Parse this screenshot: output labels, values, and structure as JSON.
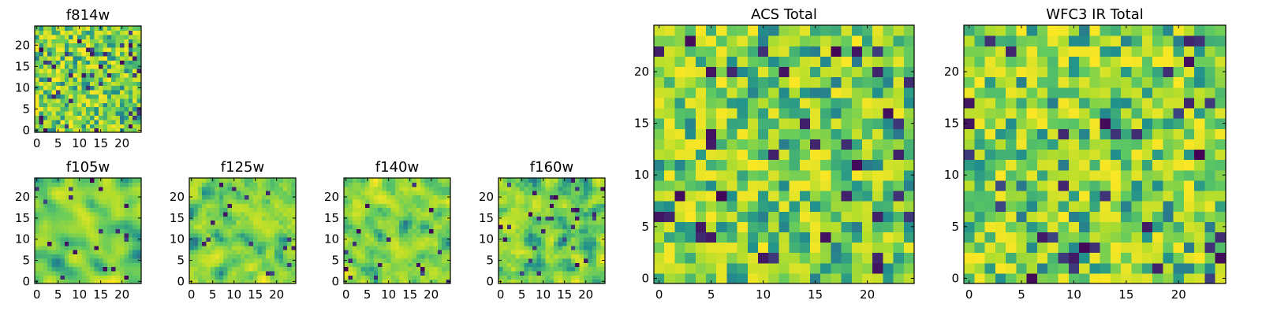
{
  "chart_data": [
    {
      "id": "f814w",
      "type": "heatmap",
      "title": "f814w",
      "grid_size": 25,
      "xlim": [
        -0.5,
        24.5
      ],
      "ylim": [
        -0.5,
        24.5
      ],
      "xticks": [
        0,
        5,
        10,
        15,
        20
      ],
      "yticks": [
        0,
        5,
        10,
        15,
        20
      ],
      "colormap": "viridis",
      "seed": 814,
      "smoothing": 0,
      "low_outlier_rate": 0.05
    },
    {
      "id": "acs-total",
      "type": "heatmap",
      "title": "ACS Total",
      "grid_size": 25,
      "xlim": [
        -0.5,
        24.5
      ],
      "ylim": [
        -0.5,
        24.5
      ],
      "xticks": [
        0,
        5,
        10,
        15,
        20
      ],
      "yticks": [
        0,
        5,
        10,
        15,
        20
      ],
      "colormap": "viridis",
      "seed": 1201,
      "smoothing": 0,
      "low_outlier_rate": 0.04
    },
    {
      "id": "wfc3-ir-total",
      "type": "heatmap",
      "title": "WFC3 IR Total",
      "grid_size": 25,
      "xlim": [
        -0.5,
        24.5
      ],
      "ylim": [
        -0.5,
        24.5
      ],
      "xticks": [
        0,
        5,
        10,
        15,
        20
      ],
      "yticks": [
        0,
        5,
        10,
        15,
        20
      ],
      "colormap": "viridis",
      "seed": 1402,
      "smoothing": 0,
      "low_outlier_rate": 0.05
    },
    {
      "id": "f105w",
      "type": "heatmap",
      "title": "f105w",
      "grid_size": 25,
      "xlim": [
        -0.5,
        24.5
      ],
      "ylim": [
        -0.5,
        24.5
      ],
      "xticks": [
        0,
        5,
        10,
        15,
        20
      ],
      "yticks": [
        0,
        5,
        10,
        15,
        20
      ],
      "colormap": "viridis",
      "seed": 105,
      "smoothing": 2,
      "low_outlier_rate": 0.03
    },
    {
      "id": "f125w",
      "type": "heatmap",
      "title": "f125w",
      "grid_size": 25,
      "xlim": [
        -0.5,
        24.5
      ],
      "ylim": [
        -0.5,
        24.5
      ],
      "xticks": [
        0,
        5,
        10,
        15,
        20
      ],
      "yticks": [
        0,
        5,
        10,
        15,
        20
      ],
      "colormap": "viridis",
      "seed": 125,
      "smoothing": 1,
      "low_outlier_rate": 0.03
    },
    {
      "id": "f140w",
      "type": "heatmap",
      "title": "f140w",
      "grid_size": 25,
      "xlim": [
        -0.5,
        24.5
      ],
      "ylim": [
        -0.5,
        24.5
      ],
      "xticks": [
        0,
        5,
        10,
        15,
        20
      ],
      "yticks": [
        0,
        5,
        10,
        15,
        20
      ],
      "colormap": "viridis",
      "seed": 140,
      "smoothing": 1,
      "low_outlier_rate": 0.03
    },
    {
      "id": "f160w",
      "type": "heatmap",
      "title": "f160w",
      "grid_size": 25,
      "xlim": [
        -0.5,
        24.5
      ],
      "ylim": [
        -0.5,
        24.5
      ],
      "xticks": [
        0,
        5,
        10,
        15,
        20
      ],
      "yticks": [
        0,
        5,
        10,
        15,
        20
      ],
      "colormap": "viridis",
      "seed": 160,
      "smoothing": 1,
      "low_outlier_rate": 0.04
    }
  ],
  "colormap_stops": [
    "#440154",
    "#3b528b",
    "#21918c",
    "#5ec962",
    "#b5de2b",
    "#fde725"
  ]
}
